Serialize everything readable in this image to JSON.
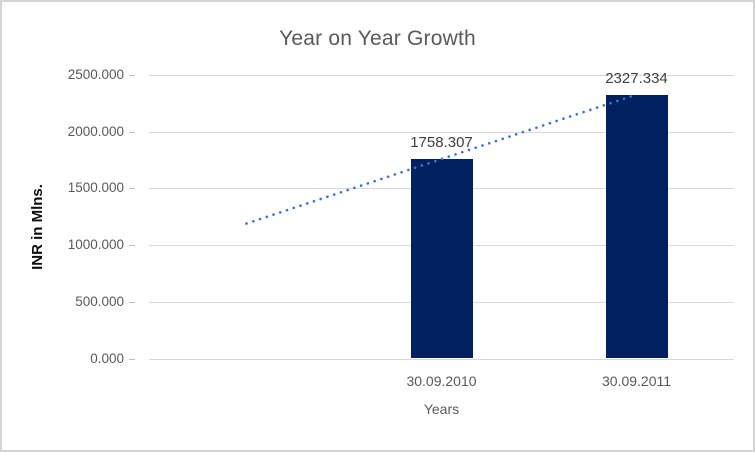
{
  "chart": {
    "background": "#ffffff",
    "border_color": "#d4d4d4"
  },
  "chart_data": {
    "type": "bar",
    "title": "Year on Year Growth",
    "categories": [
      "",
      "30.09.2010",
      "30.09.2011"
    ],
    "values": [
      null,
      1758.307,
      2327.334
    ],
    "value_labels": [
      "",
      "1758.307",
      "2327.334"
    ],
    "xlabel": "Years",
    "ylabel": "INR in Mlns.",
    "ylim": [
      0,
      2500
    ],
    "yticks": [
      0,
      500,
      1000,
      1500,
      2000,
      2500
    ],
    "ytick_labels": [
      "0.000",
      "500.000",
      "1000.000",
      "1500.000",
      "2000.000",
      "2500.000"
    ],
    "grid": true,
    "legend": "none",
    "colors": {
      "bar": "#002060",
      "trendline": "#4472c4",
      "gridline": "#d9d9d9",
      "tickmark": "#bfbfbf",
      "title_text": "#595959",
      "tick_text": "#595959",
      "data_label_text": "#404040"
    },
    "trendline": {
      "type": "linear",
      "style": "dotted",
      "start": {
        "category_index": 0,
        "value": 1190
      },
      "end": {
        "category_index": 2,
        "value": 2327.334
      }
    }
  }
}
